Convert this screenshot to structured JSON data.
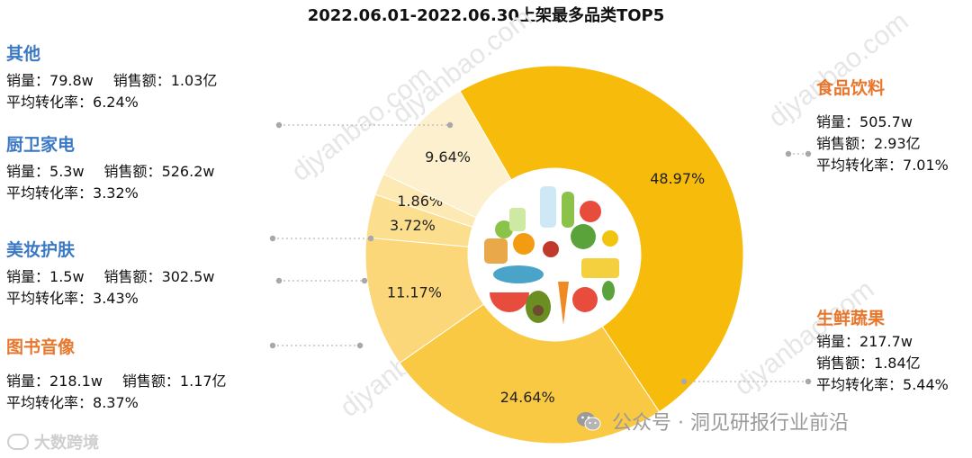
{
  "chart_data": {
    "type": "pie",
    "title": "2022.06.01-2022.06.30上架最多品类TOP5",
    "slices": [
      {
        "label": "食品饮料",
        "value": 48.97,
        "value_label": "48.97%",
        "color": "#f7bb0b"
      },
      {
        "label": "生鲜蔬果",
        "value": 24.64,
        "value_label": "24.64%",
        "color": "#f9c943"
      },
      {
        "label": "图书音像",
        "value": 11.17,
        "value_label": "11.17%",
        "color": "#fbd77a"
      },
      {
        "label": "美妆护肤",
        "value": 3.72,
        "value_label": "3.72%",
        "color": "#fcdf8e"
      },
      {
        "label": "厨卫家电",
        "value": 1.86,
        "value_label": "1.86%",
        "color": "#fde9b4"
      },
      {
        "label": "其他",
        "value": 9.64,
        "value_label": "9.64%",
        "color": "#fdf0cf"
      }
    ],
    "categories": [
      {
        "name": "食品饮料",
        "color": "#e8772e",
        "sales_label": "销量：",
        "sales": "505.7w",
        "revenue_label": "销售额：",
        "revenue": "2.93亿",
        "conv_label": "平均转化率：",
        "conv": "7.01%"
      },
      {
        "name": "生鲜蔬果",
        "color": "#e8772e",
        "sales_label": "销量：",
        "sales": "217.7w",
        "revenue_label": "销售额：",
        "revenue": "1.84亿",
        "conv_label": "平均转化率：",
        "conv": "5.44%"
      },
      {
        "name": "其他",
        "color": "#3b78c4",
        "sales_label": "销量：",
        "sales": "79.8w",
        "revenue_label": "销售额：",
        "revenue": "1.03亿",
        "conv_label": "平均转化率：",
        "conv": "6.24%"
      },
      {
        "name": "厨卫家电",
        "color": "#3b78c4",
        "sales_label": "销量：",
        "sales": "5.3w",
        "revenue_label": "销售额：",
        "revenue": "526.2w",
        "conv_label": "平均转化率：",
        "conv": "3.32%"
      },
      {
        "name": "美妆护肤",
        "color": "#3b78c4",
        "sales_label": "销量：",
        "sales": "1.5w",
        "revenue_label": "销售额：",
        "revenue": "302.5w",
        "conv_label": "平均转化率：",
        "conv": "3.43%"
      },
      {
        "name": "图书音像",
        "color": "#e8772e",
        "sales_label": "销量：",
        "sales": "218.1w",
        "revenue_label": "销售额：",
        "revenue": "1.17亿",
        "conv_label": "平均转化率：",
        "conv": "8.37%"
      }
    ]
  },
  "watermark": "djyanbao.com",
  "footer": {
    "text": "公众号 · 洞见研报行业前沿",
    "icon": "wechat-icon"
  },
  "corner": {
    "text": "大数跨境",
    "icon": "brand-logo-icon"
  }
}
